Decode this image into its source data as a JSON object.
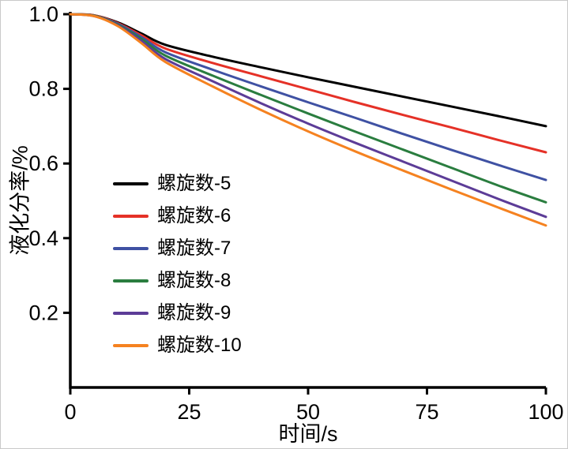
{
  "figure": {
    "background": "#ffffff",
    "axis_color": "#000000"
  },
  "chart_data": {
    "type": "line",
    "title": "",
    "xlabel": "时间/s",
    "ylabel": "液化分率/%",
    "xlim": [
      0,
      100
    ],
    "ylim": [
      0,
      1.0
    ],
    "xticks": [
      0,
      25,
      50,
      75,
      100
    ],
    "xtick_labels": [
      "0",
      "25",
      "50",
      "75",
      "100"
    ],
    "yticks": [
      1.0,
      0.8,
      0.6,
      0.4,
      0.2
    ],
    "ytick_labels": [
      "1.0",
      "0.8",
      "0.6",
      "0.4",
      "0.2"
    ],
    "grid": false,
    "legend_position": "inside-lower-left",
    "x": [
      0,
      5,
      10,
      15,
      20,
      30,
      40,
      50,
      60,
      70,
      80,
      90,
      100
    ],
    "series": [
      {
        "name": "螺旋数-5",
        "color": "#000000",
        "values": [
          1.0,
          0.997,
          0.978,
          0.948,
          0.918,
          0.886,
          0.858,
          0.831,
          0.805,
          0.779,
          0.753,
          0.727,
          0.7
        ]
      },
      {
        "name": "螺旋数-6",
        "color": "#e53127",
        "values": [
          1.0,
          0.997,
          0.976,
          0.943,
          0.908,
          0.869,
          0.834,
          0.799,
          0.764,
          0.73,
          0.697,
          0.663,
          0.63
        ]
      },
      {
        "name": "螺旋数-7",
        "color": "#3f51a3",
        "values": [
          1.0,
          0.996,
          0.974,
          0.938,
          0.898,
          0.851,
          0.807,
          0.764,
          0.722,
          0.679,
          0.637,
          0.596,
          0.556
        ]
      },
      {
        "name": "螺旋数-8",
        "color": "#2a7d3f",
        "values": [
          1.0,
          0.996,
          0.972,
          0.933,
          0.889,
          0.835,
          0.784,
          0.734,
          0.685,
          0.637,
          0.589,
          0.541,
          0.496
        ]
      },
      {
        "name": "螺旋数-9",
        "color": "#5c3c97",
        "values": [
          1.0,
          0.995,
          0.97,
          0.928,
          0.88,
          0.82,
          0.762,
          0.707,
          0.655,
          0.605,
          0.555,
          0.505,
          0.457
        ]
      },
      {
        "name": "螺旋数-10",
        "color": "#f58220",
        "values": [
          1.0,
          0.995,
          0.968,
          0.922,
          0.872,
          0.806,
          0.744,
          0.686,
          0.632,
          0.581,
          0.531,
          0.482,
          0.434
        ]
      }
    ]
  }
}
